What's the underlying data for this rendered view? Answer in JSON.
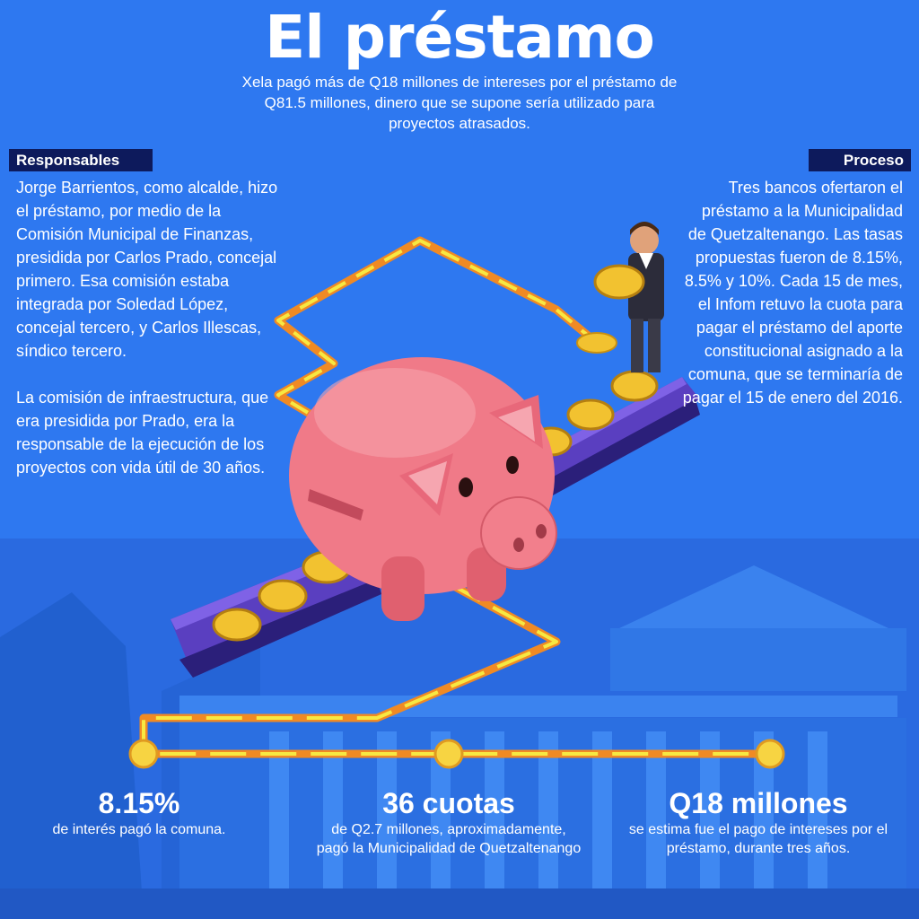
{
  "title": "El préstamo",
  "subtitle": "Xela pagó más de Q18 millones de intereses por el préstamo de Q81.5 millones, dinero que se supone sería utilizado para proyectos atrasados.",
  "left": {
    "tag": "Responsables",
    "paragraph1": "Jorge Barrientos, como alcalde, hizo el préstamo, por medio de la Comisión Municipal de Finanzas, presidida por Carlos Prado, concejal primero. Esa comisión estaba integrada por Soledad López, concejal tercero, y Carlos Illescas, síndico tercero.",
    "paragraph2": "La comisión de infraestructura, que era presidida por Prado, era la responsable de la ejecución de los proyectos con vida útil de 30 años."
  },
  "right": {
    "tag": "Proceso",
    "text": "Tres bancos ofertaron el préstamo a la Municipalidad de Quetzaltenango. Las tasas propuestas fueron de 8.15%, 8.5% y 10%. Cada 15 de mes, el Infom retuvo la cuota para pagar el préstamo del aporte constitucional asignado a la comuna, que se terminaría de pagar el 15 de enero del 2016."
  },
  "stats": [
    {
      "value": "8.15%",
      "text": "de interés pagó la comuna."
    },
    {
      "value": "36 cuotas",
      "text": "de Q2.7 millones, aproximadamente, pagó la Municipalidad de Quetzaltenango"
    },
    {
      "value": "Q18 millones",
      "text": "se estima fue el pago de intereses por el préstamo, durante tres años."
    }
  ],
  "colors": {
    "background": "#2e78f0",
    "tag_bg": "#0d1a5c",
    "path_orange": "#f08a24",
    "path_yellow": "#f7e842",
    "piggy": "#f07a88",
    "coin": "#f2c230"
  }
}
